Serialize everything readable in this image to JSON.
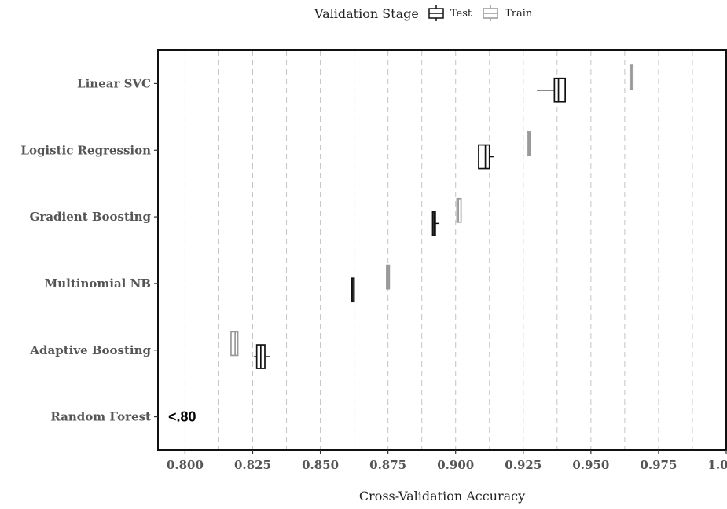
{
  "chart_data": {
    "type": "boxplot",
    "orientation": "horizontal",
    "xlabel": "Cross-Validation Accuracy",
    "xlim": [
      0.79,
      1.0
    ],
    "xticks": [
      "0.800",
      "0.825",
      "0.850",
      "0.875",
      "0.900",
      "0.925",
      "0.950",
      "0.975",
      "1.000"
    ],
    "grid": "vertical dashed",
    "legend": {
      "title": "Validation Stage",
      "placement": "top",
      "items": [
        {
          "name": "Test",
          "color": "#111111"
        },
        {
          "name": "Train",
          "color": "#999999"
        }
      ]
    },
    "categories": [
      "Linear SVC",
      "Logistic Regression",
      "Gradient Boosting",
      "Multinomial NB",
      "Adaptive Boosting",
      "Random Forest"
    ],
    "series": [
      {
        "name": "Test",
        "color": "#111111",
        "boxes": [
          {
            "category": "Linear SVC",
            "min": 0.93,
            "q1": 0.9365,
            "median": 0.938,
            "q3": 0.9405,
            "max": 0.9405
          },
          {
            "category": "Logistic Regression",
            "min": 0.9085,
            "q1": 0.9085,
            "median": 0.911,
            "q3": 0.9125,
            "max": 0.914
          },
          {
            "category": "Gradient Boosting",
            "min": 0.8915,
            "q1": 0.8915,
            "median": 0.892,
            "q3": 0.8925,
            "max": 0.894
          },
          {
            "category": "Multinomial NB",
            "min": 0.8615,
            "q1": 0.8615,
            "median": 0.862,
            "q3": 0.8625,
            "max": 0.8625
          },
          {
            "category": "Adaptive Boosting",
            "min": 0.8255,
            "q1": 0.8265,
            "median": 0.828,
            "q3": 0.8295,
            "max": 0.8315
          },
          {
            "category": "Random Forest",
            "min": null,
            "q1": null,
            "median": null,
            "q3": null,
            "max": null
          }
        ]
      },
      {
        "name": "Train",
        "color": "#999999",
        "boxes": [
          {
            "category": "Linear SVC",
            "min": 0.9645,
            "q1": 0.9645,
            "median": 0.965,
            "q3": 0.9655,
            "max": 0.9655
          },
          {
            "category": "Logistic Regression",
            "min": 0.9265,
            "q1": 0.9265,
            "median": 0.927,
            "q3": 0.9275,
            "max": 0.928
          },
          {
            "category": "Gradient Boosting",
            "min": 0.9005,
            "q1": 0.9005,
            "median": 0.901,
            "q3": 0.902,
            "max": 0.902
          },
          {
            "category": "Multinomial NB",
            "min": 0.8745,
            "q1": 0.8745,
            "median": 0.875,
            "q3": 0.8755,
            "max": 0.8755
          },
          {
            "category": "Adaptive Boosting",
            "min": 0.817,
            "q1": 0.817,
            "median": 0.8185,
            "q3": 0.8195,
            "max": 0.8195
          }
        ]
      }
    ],
    "annotations": [
      {
        "category": "Random Forest",
        "text": "<.80"
      }
    ]
  }
}
